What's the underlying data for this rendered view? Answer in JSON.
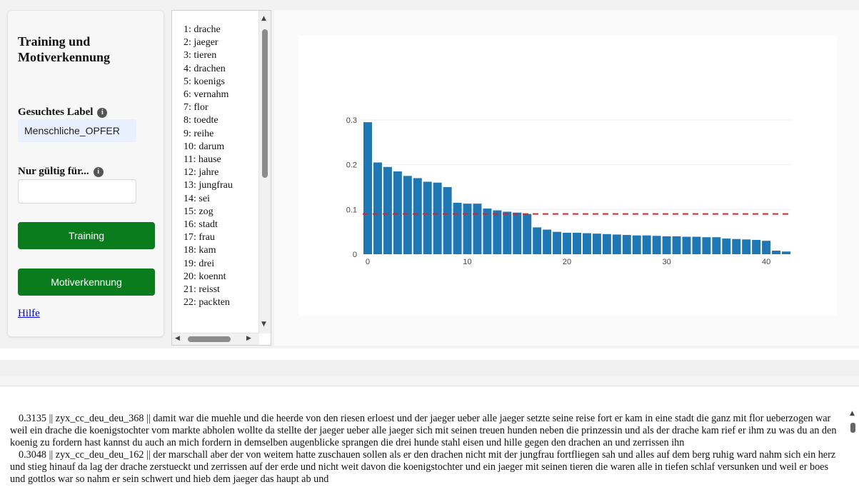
{
  "sidebar": {
    "title": "Training und Motiverkennung",
    "label_search": "Gesuchtes Label",
    "search_value": "Menschliche_OPFER",
    "label_only": "Nur gültig für...",
    "only_value": "",
    "btn_training": "Training",
    "btn_motiv": "Motiverkennung",
    "help": "Hilfe",
    "info_glyph": "i"
  },
  "wordlist": [
    "1: drache",
    "2: jaeger",
    "3: tieren",
    "4: drachen",
    "5: koenigs",
    "6: vernahm",
    "7: flor",
    "8: toedte",
    "9: reihe",
    "10: darum",
    "11: hause",
    "12: jahre",
    "13: jungfrau",
    "14: sei",
    "15: zog",
    "16: stadt",
    "17: frau",
    "18: kam",
    "19: drei",
    "20: koennt",
    "21: reisst",
    "22: packten"
  ],
  "chart_data": {
    "type": "bar",
    "x": [
      0,
      1,
      2,
      3,
      4,
      5,
      6,
      7,
      8,
      9,
      10,
      11,
      12,
      13,
      14,
      15,
      16,
      17,
      18,
      19,
      20,
      21,
      22,
      23,
      24,
      25,
      26,
      27,
      28,
      29,
      30,
      31,
      32,
      33,
      34,
      35,
      36,
      37,
      38,
      39,
      40,
      41,
      42
    ],
    "values": [
      0.295,
      0.205,
      0.195,
      0.185,
      0.175,
      0.17,
      0.162,
      0.16,
      0.15,
      0.115,
      0.113,
      0.113,
      0.102,
      0.098,
      0.095,
      0.093,
      0.09,
      0.06,
      0.055,
      0.05,
      0.048,
      0.048,
      0.047,
      0.046,
      0.045,
      0.044,
      0.043,
      0.042,
      0.042,
      0.041,
      0.04,
      0.04,
      0.039,
      0.039,
      0.038,
      0.038,
      0.035,
      0.034,
      0.033,
      0.032,
      0.03,
      0.008,
      0.006
    ],
    "threshold": 0.09,
    "ylim": [
      0,
      0.3
    ],
    "yticks": [
      "0",
      "0.1",
      "0.2",
      "0.3"
    ],
    "xticks": [
      "0",
      "10",
      "20",
      "30",
      "40"
    ],
    "bar_color": "#1f77b4",
    "line_color": "#d62728",
    "grid": true
  },
  "results": [
    "0.3135 || zyx_cc_deu_deu_368 ||  damit war die muehle und die heerde von den riesen erloest und der jaeger ueber alle jaeger setzte seine reise fort er kam in eine stadt die ganz mit flor ueberzogen war weil ein drache die koenigstochter vom markte abholen wollte da stellte der jaeger ueber alle jaeger sich mit seinen treuen hunden neben die prinzessin und als der drache kam rief er ihm zu was du an den koenig zu fordern hast kannst du auch an mich fordern in demselben augenblicke sprangen die drei hunde stahl eisen und hille gegen den drachen an und zerrissen ihn",
    "0.3048 || zyx_cc_deu_deu_162 ||  der marschall aber der von weitem hatte zuschauen sollen als er den drachen nicht mit der jungfrau fortfliegen sah und alles auf dem berg ruhig ward nahm sich ein herz und stieg hinauf da lag der drache zerstueckt und zerrissen auf der erde und nicht weit davon die koenigstochter und ein jaeger mit seinen tieren die waren alle in tiefen schlaf versunken und weil er boes und gottlos war so nahm er sein schwert und hieb dem jaeger das haupt ab und"
  ]
}
